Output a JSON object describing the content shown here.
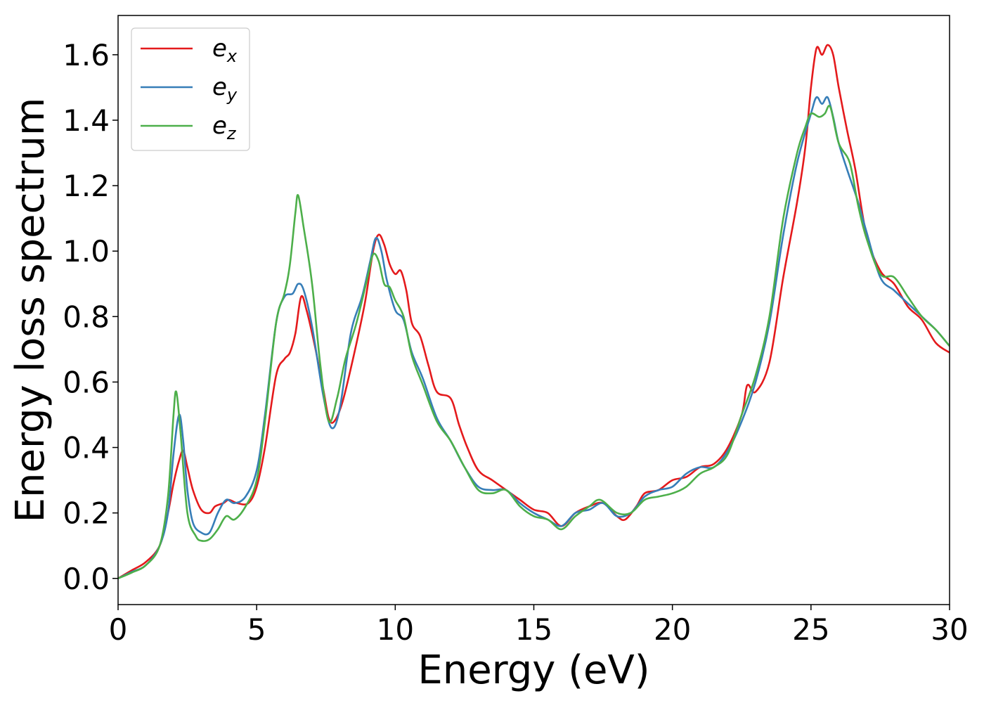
{
  "chart_data": {
    "type": "line",
    "title": "",
    "xlabel": "Energy (eV)",
    "ylabel": "Energy loss spectrum",
    "xlim": [
      0,
      30
    ],
    "ylim": [
      -0.08,
      1.72
    ],
    "xticks": [
      0,
      5,
      10,
      15,
      20,
      25,
      30
    ],
    "xtick_labels": [
      "0",
      "5",
      "10",
      "15",
      "20",
      "25",
      "30"
    ],
    "yticks": [
      0.0,
      0.2,
      0.4,
      0.6,
      0.8,
      1.0,
      1.2,
      1.4,
      1.6
    ],
    "ytick_labels": [
      "0.0",
      "0.2",
      "0.4",
      "0.6",
      "0.8",
      "1.0",
      "1.2",
      "1.4",
      "1.6"
    ],
    "grid": false,
    "legend_position": "top-left",
    "series": [
      {
        "name": "e",
        "subscript": "x",
        "color": "#e41a1c",
        "points": [
          [
            0,
            0.0
          ],
          [
            0.5,
            0.025
          ],
          [
            1.0,
            0.05
          ],
          [
            1.5,
            0.1
          ],
          [
            1.8,
            0.2
          ],
          [
            2.0,
            0.29
          ],
          [
            2.2,
            0.36
          ],
          [
            2.35,
            0.39
          ],
          [
            2.5,
            0.34
          ],
          [
            2.7,
            0.27
          ],
          [
            3.0,
            0.21
          ],
          [
            3.3,
            0.2
          ],
          [
            3.5,
            0.22
          ],
          [
            3.8,
            0.23
          ],
          [
            4.0,
            0.24
          ],
          [
            4.3,
            0.23
          ],
          [
            4.7,
            0.23
          ],
          [
            5.0,
            0.28
          ],
          [
            5.3,
            0.4
          ],
          [
            5.7,
            0.62
          ],
          [
            6.0,
            0.67
          ],
          [
            6.2,
            0.69
          ],
          [
            6.4,
            0.75
          ],
          [
            6.6,
            0.86
          ],
          [
            6.8,
            0.82
          ],
          [
            7.1,
            0.71
          ],
          [
            7.4,
            0.58
          ],
          [
            7.6,
            0.49
          ],
          [
            7.8,
            0.48
          ],
          [
            8.1,
            0.54
          ],
          [
            8.5,
            0.68
          ],
          [
            8.9,
            0.84
          ],
          [
            9.2,
            1.0
          ],
          [
            9.4,
            1.05
          ],
          [
            9.6,
            1.02
          ],
          [
            9.8,
            0.96
          ],
          [
            10.0,
            0.93
          ],
          [
            10.2,
            0.94
          ],
          [
            10.4,
            0.88
          ],
          [
            10.6,
            0.78
          ],
          [
            10.9,
            0.74
          ],
          [
            11.2,
            0.65
          ],
          [
            11.5,
            0.57
          ],
          [
            12.0,
            0.55
          ],
          [
            12.3,
            0.47
          ],
          [
            12.6,
            0.4
          ],
          [
            13.0,
            0.33
          ],
          [
            13.5,
            0.3
          ],
          [
            14.0,
            0.27
          ],
          [
            14.5,
            0.24
          ],
          [
            15.0,
            0.21
          ],
          [
            15.5,
            0.2
          ],
          [
            16.0,
            0.16
          ],
          [
            16.5,
            0.2
          ],
          [
            17.0,
            0.22
          ],
          [
            17.5,
            0.23
          ],
          [
            18.0,
            0.19
          ],
          [
            18.3,
            0.18
          ],
          [
            18.7,
            0.22
          ],
          [
            19.0,
            0.26
          ],
          [
            19.5,
            0.27
          ],
          [
            20.0,
            0.3
          ],
          [
            20.5,
            0.31
          ],
          [
            21.0,
            0.34
          ],
          [
            21.5,
            0.35
          ],
          [
            22.0,
            0.4
          ],
          [
            22.5,
            0.5
          ],
          [
            22.7,
            0.59
          ],
          [
            23.0,
            0.57
          ],
          [
            23.5,
            0.66
          ],
          [
            24.0,
            0.92
          ],
          [
            24.5,
            1.15
          ],
          [
            24.8,
            1.32
          ],
          [
            25.0,
            1.5
          ],
          [
            25.2,
            1.62
          ],
          [
            25.4,
            1.6
          ],
          [
            25.6,
            1.63
          ],
          [
            25.8,
            1.6
          ],
          [
            26.0,
            1.5
          ],
          [
            26.3,
            1.37
          ],
          [
            26.6,
            1.25
          ],
          [
            27.0,
            1.05
          ],
          [
            27.5,
            0.94
          ],
          [
            28.0,
            0.9
          ],
          [
            28.5,
            0.83
          ],
          [
            29.0,
            0.79
          ],
          [
            29.5,
            0.72
          ],
          [
            30.0,
            0.69
          ]
        ]
      },
      {
        "name": "e",
        "subscript": "y",
        "color": "#377eb8",
        "points": [
          [
            0,
            0.0
          ],
          [
            0.5,
            0.02
          ],
          [
            1.0,
            0.04
          ],
          [
            1.5,
            0.1
          ],
          [
            1.8,
            0.2
          ],
          [
            2.0,
            0.38
          ],
          [
            2.2,
            0.5
          ],
          [
            2.35,
            0.42
          ],
          [
            2.5,
            0.27
          ],
          [
            2.7,
            0.17
          ],
          [
            3.0,
            0.14
          ],
          [
            3.3,
            0.14
          ],
          [
            3.6,
            0.2
          ],
          [
            3.9,
            0.24
          ],
          [
            4.2,
            0.23
          ],
          [
            4.6,
            0.25
          ],
          [
            5.0,
            0.33
          ],
          [
            5.3,
            0.5
          ],
          [
            5.7,
            0.78
          ],
          [
            6.0,
            0.86
          ],
          [
            6.3,
            0.87
          ],
          [
            6.5,
            0.9
          ],
          [
            6.7,
            0.88
          ],
          [
            7.0,
            0.77
          ],
          [
            7.4,
            0.56
          ],
          [
            7.7,
            0.46
          ],
          [
            8.0,
            0.52
          ],
          [
            8.4,
            0.75
          ],
          [
            8.8,
            0.86
          ],
          [
            9.1,
            0.97
          ],
          [
            9.3,
            1.04
          ],
          [
            9.5,
            1.0
          ],
          [
            9.7,
            0.91
          ],
          [
            10.0,
            0.82
          ],
          [
            10.3,
            0.79
          ],
          [
            10.6,
            0.69
          ],
          [
            11.0,
            0.61
          ],
          [
            11.5,
            0.49
          ],
          [
            12.0,
            0.42
          ],
          [
            12.5,
            0.34
          ],
          [
            13.0,
            0.28
          ],
          [
            13.5,
            0.27
          ],
          [
            14.0,
            0.27
          ],
          [
            14.5,
            0.23
          ],
          [
            15.0,
            0.2
          ],
          [
            15.5,
            0.18
          ],
          [
            16.0,
            0.16
          ],
          [
            16.5,
            0.2
          ],
          [
            17.0,
            0.21
          ],
          [
            17.5,
            0.23
          ],
          [
            18.0,
            0.19
          ],
          [
            18.5,
            0.2
          ],
          [
            19.0,
            0.25
          ],
          [
            19.5,
            0.27
          ],
          [
            20.0,
            0.28
          ],
          [
            20.5,
            0.32
          ],
          [
            21.0,
            0.34
          ],
          [
            21.5,
            0.34
          ],
          [
            22.0,
            0.39
          ],
          [
            22.5,
            0.48
          ],
          [
            23.0,
            0.6
          ],
          [
            23.5,
            0.78
          ],
          [
            24.0,
            1.05
          ],
          [
            24.5,
            1.27
          ],
          [
            25.0,
            1.42
          ],
          [
            25.2,
            1.47
          ],
          [
            25.4,
            1.45
          ],
          [
            25.6,
            1.47
          ],
          [
            25.8,
            1.41
          ],
          [
            26.0,
            1.33
          ],
          [
            26.3,
            1.25
          ],
          [
            26.7,
            1.15
          ],
          [
            27.0,
            1.06
          ],
          [
            27.5,
            0.92
          ],
          [
            28.0,
            0.88
          ],
          [
            28.5,
            0.84
          ],
          [
            29.0,
            0.8
          ],
          [
            29.5,
            0.76
          ],
          [
            30.0,
            0.71
          ]
        ]
      },
      {
        "name": "e",
        "subscript": "z",
        "color": "#4daf4a",
        "points": [
          [
            0,
            0.0
          ],
          [
            0.5,
            0.018
          ],
          [
            1.0,
            0.04
          ],
          [
            1.5,
            0.1
          ],
          [
            1.8,
            0.25
          ],
          [
            2.0,
            0.5
          ],
          [
            2.1,
            0.57
          ],
          [
            2.25,
            0.45
          ],
          [
            2.5,
            0.2
          ],
          [
            2.8,
            0.13
          ],
          [
            3.0,
            0.115
          ],
          [
            3.3,
            0.12
          ],
          [
            3.6,
            0.15
          ],
          [
            3.9,
            0.19
          ],
          [
            4.2,
            0.18
          ],
          [
            4.6,
            0.22
          ],
          [
            5.0,
            0.3
          ],
          [
            5.3,
            0.48
          ],
          [
            5.7,
            0.78
          ],
          [
            6.0,
            0.87
          ],
          [
            6.2,
            0.96
          ],
          [
            6.4,
            1.12
          ],
          [
            6.5,
            1.17
          ],
          [
            6.7,
            1.07
          ],
          [
            7.0,
            0.9
          ],
          [
            7.3,
            0.65
          ],
          [
            7.6,
            0.48
          ],
          [
            7.9,
            0.55
          ],
          [
            8.2,
            0.67
          ],
          [
            8.6,
            0.78
          ],
          [
            9.0,
            0.92
          ],
          [
            9.2,
            0.99
          ],
          [
            9.4,
            0.97
          ],
          [
            9.6,
            0.9
          ],
          [
            9.8,
            0.89
          ],
          [
            10.0,
            0.85
          ],
          [
            10.3,
            0.8
          ],
          [
            10.6,
            0.68
          ],
          [
            11.0,
            0.59
          ],
          [
            11.5,
            0.48
          ],
          [
            12.0,
            0.42
          ],
          [
            12.5,
            0.34
          ],
          [
            13.0,
            0.27
          ],
          [
            13.5,
            0.26
          ],
          [
            14.0,
            0.27
          ],
          [
            14.5,
            0.22
          ],
          [
            15.0,
            0.19
          ],
          [
            15.5,
            0.18
          ],
          [
            16.0,
            0.15
          ],
          [
            16.5,
            0.19
          ],
          [
            17.0,
            0.22
          ],
          [
            17.4,
            0.24
          ],
          [
            18.0,
            0.2
          ],
          [
            18.5,
            0.2
          ],
          [
            19.0,
            0.24
          ],
          [
            19.5,
            0.25
          ],
          [
            20.0,
            0.26
          ],
          [
            20.5,
            0.28
          ],
          [
            21.0,
            0.32
          ],
          [
            21.5,
            0.34
          ],
          [
            22.0,
            0.38
          ],
          [
            22.5,
            0.5
          ],
          [
            23.0,
            0.62
          ],
          [
            23.5,
            0.8
          ],
          [
            24.0,
            1.1
          ],
          [
            24.5,
            1.3
          ],
          [
            24.8,
            1.38
          ],
          [
            25.0,
            1.42
          ],
          [
            25.3,
            1.41
          ],
          [
            25.5,
            1.42
          ],
          [
            25.7,
            1.44
          ],
          [
            26.0,
            1.33
          ],
          [
            26.4,
            1.27
          ],
          [
            26.7,
            1.14
          ],
          [
            27.0,
            1.04
          ],
          [
            27.5,
            0.93
          ],
          [
            28.0,
            0.92
          ],
          [
            28.5,
            0.86
          ],
          [
            29.0,
            0.8
          ],
          [
            29.5,
            0.76
          ],
          [
            30.0,
            0.71
          ]
        ]
      }
    ]
  }
}
